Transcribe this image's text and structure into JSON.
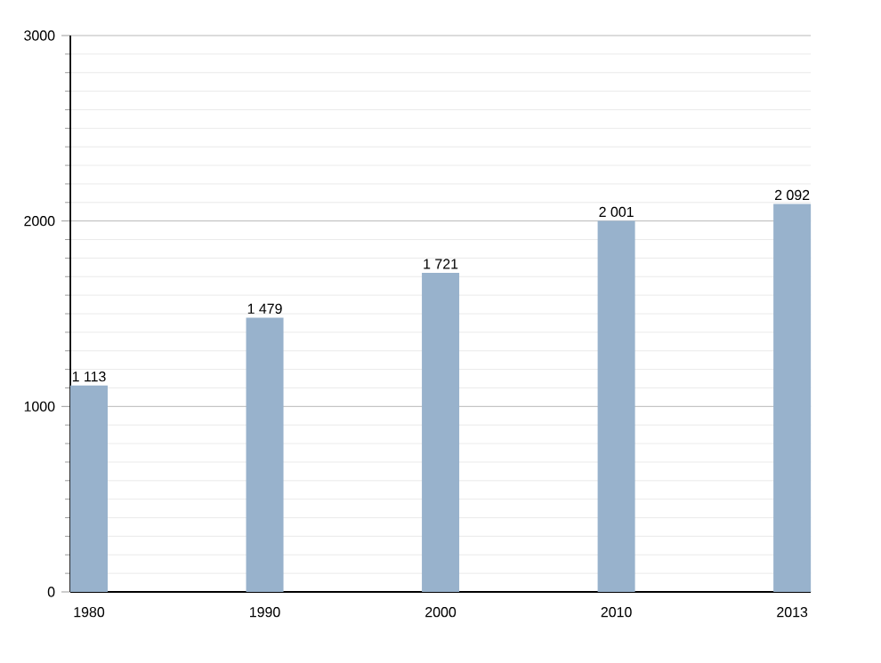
{
  "chart_data": {
    "type": "bar",
    "categories": [
      "1980",
      "1990",
      "2000",
      "2010",
      "2013"
    ],
    "values": [
      1113,
      1479,
      1721,
      2001,
      2092
    ],
    "value_labels": [
      "1 113",
      "1 479",
      "1 721",
      "2 001",
      "2 092"
    ],
    "color": "#98b2cc",
    "ylim": [
      0,
      3000
    ],
    "yticks": [
      0,
      1000,
      2000,
      3000
    ],
    "grid": "y"
  }
}
